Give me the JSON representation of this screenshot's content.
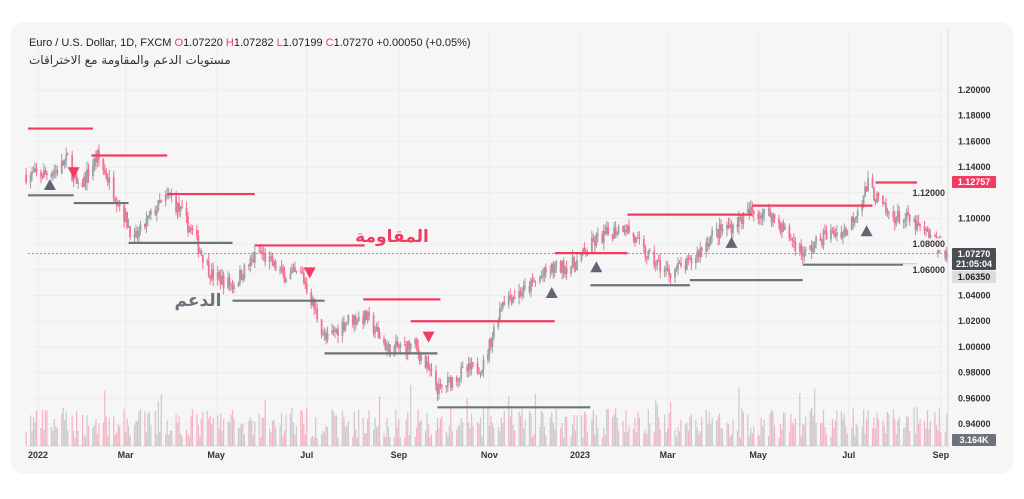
{
  "header": {
    "symbol": "Euro / U.S. Dollar, 1D, FXCM",
    "o_label": "O",
    "o": "1.07220",
    "h_label": "H",
    "h": "1.07282",
    "l_label": "L",
    "l": "1.07199",
    "c_label": "C",
    "c": "1.07270",
    "change": "+0.00050 (+0.05%)",
    "subtitle": "مستويات الدعم والمقاومة مع الاختراقات"
  },
  "colors": {
    "up": "#9b9fa6",
    "down": "#f5708f",
    "resistance": "#f23b63",
    "support": "#6b737c",
    "background": "#f6f6f6"
  },
  "chart_data": {
    "type": "candlestick",
    "ylim": [
      0.93,
      1.205
    ],
    "yticks": [
      "1.20000",
      "1.18000",
      "1.16000",
      "1.14000",
      "1.12000",
      "1.10000",
      "1.08000",
      "1.06000",
      "1.04000",
      "1.02000",
      "1.00000",
      "0.98000",
      "0.96000",
      "0.94000"
    ],
    "xticks": [
      {
        "label": "2022",
        "date": "2022-01-01"
      },
      {
        "label": "Mar",
        "date": "2022-03-01"
      },
      {
        "label": "May",
        "date": "2022-05-01"
      },
      {
        "label": "Jul",
        "date": "2022-07-01"
      },
      {
        "label": "Sep",
        "date": "2022-09-01"
      },
      {
        "label": "Nov",
        "date": "2022-11-01"
      },
      {
        "label": "2023",
        "date": "2023-01-01"
      },
      {
        "label": "Mar",
        "date": "2023-03-01"
      },
      {
        "label": "May",
        "date": "2023-05-01"
      },
      {
        "label": "Jul",
        "date": "2023-07-01"
      },
      {
        "label": "Sep",
        "date": "2023-09-01"
      }
    ],
    "close_path": [
      [
        "2022-01-03",
        1.134
      ],
      [
        "2022-01-14",
        1.138
      ],
      [
        "2022-01-21",
        1.146
      ],
      [
        "2022-01-28",
        1.122
      ],
      [
        "2022-02-10",
        1.148
      ],
      [
        "2022-02-24",
        1.114
      ],
      [
        "2022-03-07",
        1.083
      ],
      [
        "2022-03-21",
        1.107
      ],
      [
        "2022-03-31",
        1.118
      ],
      [
        "2022-04-14",
        1.091
      ],
      [
        "2022-04-28",
        1.056
      ],
      [
        "2022-05-12",
        1.048
      ],
      [
        "2022-05-30",
        1.074
      ],
      [
        "2022-06-15",
        1.056
      ],
      [
        "2022-06-28",
        1.056
      ],
      [
        "2022-07-14",
        1.005
      ],
      [
        "2022-07-28",
        1.021
      ],
      [
        "2022-08-10",
        1.023
      ],
      [
        "2022-08-25",
        0.998
      ],
      [
        "2022-09-12",
        1.001
      ],
      [
        "2022-09-28",
        0.966
      ],
      [
        "2022-10-10",
        0.978
      ],
      [
        "2022-10-28",
        0.986
      ],
      [
        "2022-11-10",
        1.037
      ],
      [
        "2022-11-25",
        1.044
      ],
      [
        "2022-12-12",
        1.06
      ],
      [
        "2022-12-28",
        1.064
      ],
      [
        "2023-01-12",
        1.083
      ],
      [
        "2023-01-31",
        1.095
      ],
      [
        "2023-02-14",
        1.072
      ],
      [
        "2023-03-01",
        1.058
      ],
      [
        "2023-03-15",
        1.064
      ],
      [
        "2023-03-31",
        1.087
      ],
      [
        "2023-04-14",
        1.095
      ],
      [
        "2023-04-26",
        1.105
      ],
      [
        "2023-05-10",
        1.103
      ],
      [
        "2023-05-24",
        1.083
      ],
      [
        "2023-06-01",
        1.072
      ],
      [
        "2023-06-15",
        1.087
      ],
      [
        "2023-06-30",
        1.091
      ],
      [
        "2023-07-14",
        1.126
      ],
      [
        "2023-07-27",
        1.103
      ],
      [
        "2023-08-10",
        1.099
      ],
      [
        "2023-08-25",
        1.085
      ],
      [
        "2023-09-05",
        1.0727
      ]
    ],
    "resistance_lines": [
      [
        1.17,
        "2021-12-25",
        "2022-02-07"
      ],
      [
        1.149,
        "2022-02-06",
        "2022-03-29"
      ],
      [
        1.119,
        "2022-03-29",
        "2022-05-27"
      ],
      [
        1.079,
        "2022-05-27",
        "2022-08-09"
      ],
      [
        1.037,
        "2022-08-08",
        "2022-09-29"
      ],
      [
        1.02,
        "2022-09-09",
        "2022-12-15"
      ],
      [
        1.073,
        "2022-12-15",
        "2023-02-02"
      ],
      [
        1.103,
        "2023-02-02",
        "2023-04-27"
      ],
      [
        1.11,
        "2023-04-27",
        "2023-07-17"
      ],
      [
        1.128,
        "2023-07-19",
        "2023-08-16"
      ]
    ],
    "support_lines": [
      [
        1.118,
        "2021-12-25",
        "2022-01-25"
      ],
      [
        1.112,
        "2022-01-25",
        "2022-03-03"
      ],
      [
        1.081,
        "2022-03-03",
        "2022-05-12"
      ],
      [
        1.036,
        "2022-05-12",
        "2022-07-13"
      ],
      [
        0.995,
        "2022-07-13",
        "2022-09-27"
      ],
      [
        0.953,
        "2022-09-27",
        "2023-01-08"
      ],
      [
        1.048,
        "2023-01-08",
        "2023-03-16"
      ],
      [
        1.052,
        "2023-03-16",
        "2023-05-31"
      ],
      [
        1.064,
        "2023-05-31",
        "2023-08-16"
      ]
    ],
    "breakout_up": [
      [
        "2022-01-09",
        1.126
      ],
      [
        "2022-12-13",
        1.042
      ],
      [
        "2023-01-12",
        1.062
      ],
      [
        "2023-04-13",
        1.081
      ],
      [
        "2023-07-13",
        1.09
      ]
    ],
    "breakout_down": [
      [
        "2022-01-25",
        1.136
      ],
      [
        "2022-07-03",
        1.058
      ],
      [
        "2022-09-21",
        1.008
      ]
    ],
    "annotations": {
      "resistance": "المقاومة",
      "support": "الدعم"
    },
    "price_badges": {
      "high_marker": "1.12757",
      "last_price": "1.07270",
      "countdown": "21:05:04",
      "low_marker": "1.06350",
      "volume": "3.164K"
    }
  }
}
